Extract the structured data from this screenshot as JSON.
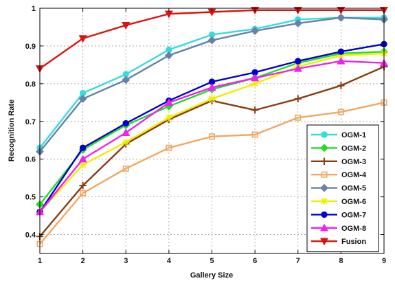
{
  "chart_data": {
    "type": "line",
    "title": "",
    "xlabel": "Gallery Size",
    "ylabel": "Recognition Rate",
    "x": [
      1,
      2,
      3,
      4,
      5,
      6,
      7,
      8,
      9
    ],
    "xlim": [
      1,
      9
    ],
    "ylim": [
      0.35,
      1.0
    ],
    "xticks": [
      "1",
      "2",
      "3",
      "4",
      "5",
      "6",
      "7",
      "8",
      "9"
    ],
    "yticks": [
      0.4,
      0.5,
      0.6,
      0.7,
      0.8,
      0.9,
      1
    ],
    "ytick_labels": [
      "0.4",
      "0.5",
      "0.6",
      "0.7",
      "0.8",
      "0.9",
      "1"
    ],
    "grid": true,
    "legend_position": "bottom-right",
    "series": [
      {
        "name": "OGM-1",
        "color": "#33dddd",
        "marker": "circle",
        "values": [
          0.63,
          0.775,
          0.825,
          0.89,
          0.93,
          0.945,
          0.97,
          0.975,
          0.975
        ]
      },
      {
        "name": "OGM-2",
        "color": "#22dd22",
        "marker": "diamond",
        "values": [
          0.48,
          0.625,
          0.69,
          0.74,
          0.785,
          0.815,
          0.855,
          0.88,
          0.885
        ]
      },
      {
        "name": "OGM-3",
        "color": "#8b3a10",
        "marker": "plus",
        "values": [
          0.395,
          0.53,
          0.64,
          0.705,
          0.755,
          0.73,
          0.76,
          0.795,
          0.845
        ]
      },
      {
        "name": "OGM-4",
        "color": "#f0a860",
        "marker": "square",
        "values": [
          0.375,
          0.51,
          0.575,
          0.63,
          0.66,
          0.665,
          0.71,
          0.725,
          0.75
        ]
      },
      {
        "name": "OGM-5",
        "color": "#6a80a8",
        "marker": "diamond",
        "values": [
          0.62,
          0.76,
          0.81,
          0.875,
          0.915,
          0.94,
          0.96,
          0.975,
          0.97
        ]
      },
      {
        "name": "OGM-6",
        "color": "#eeee00",
        "marker": "star",
        "values": [
          0.46,
          0.585,
          0.645,
          0.71,
          0.76,
          0.8,
          0.845,
          0.875,
          0.88
        ]
      },
      {
        "name": "OGM-7",
        "color": "#0000cc",
        "marker": "circle",
        "values": [
          0.46,
          0.63,
          0.695,
          0.755,
          0.805,
          0.83,
          0.86,
          0.885,
          0.905
        ]
      },
      {
        "name": "OGM-8",
        "color": "#ee22ee",
        "marker": "triangle-up",
        "values": [
          0.46,
          0.6,
          0.67,
          0.75,
          0.79,
          0.815,
          0.84,
          0.86,
          0.855
        ]
      },
      {
        "name": "Fusion",
        "color": "#dd1111",
        "marker": "triangle-down",
        "values": [
          0.84,
          0.92,
          0.955,
          0.985,
          0.99,
          0.995,
          0.995,
          0.995,
          0.995
        ]
      }
    ]
  }
}
